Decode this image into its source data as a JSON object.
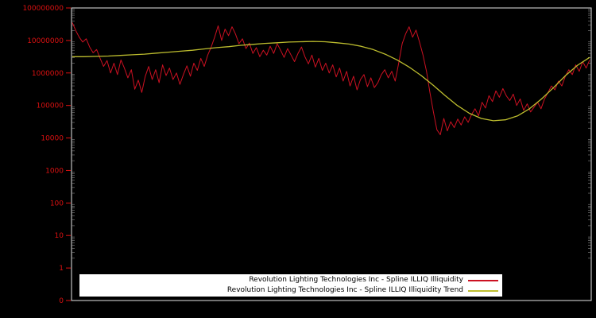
{
  "colors": {
    "background": "#000000",
    "axis_label": "#dd1111",
    "border": "#e6e6e6",
    "minor_tick": "#8a8a8a",
    "legend_bg": "#ffffff",
    "series_red": "#cc1122",
    "series_trend": "#bdbd2e"
  },
  "chart_data": {
    "type": "line",
    "title": "",
    "xlabel": "",
    "ylabel": "",
    "y_scale": "log10",
    "ylim_log10": [
      0,
      8
    ],
    "grid": false,
    "legend_position": "bottom-center",
    "y_tick_labels": [
      "100000000",
      "10000000",
      "1000000",
      "100000",
      "10000",
      "1000",
      "100",
      "10",
      "1",
      "0"
    ],
    "series": [
      {
        "name": "Revolution Lighting Technologies Inc - Spline ILLIQ Illiquidity",
        "color": "#cc1122",
        "log10_values": [
          7.55,
          7.3,
          7.1,
          6.95,
          7.05,
          6.8,
          6.62,
          6.72,
          6.45,
          6.2,
          6.38,
          6.0,
          6.3,
          5.95,
          6.4,
          6.15,
          5.85,
          6.1,
          5.5,
          5.78,
          5.4,
          5.9,
          6.2,
          5.8,
          6.1,
          5.7,
          6.25,
          5.92,
          6.15,
          5.8,
          6.0,
          5.65,
          5.95,
          6.22,
          5.9,
          6.3,
          6.08,
          6.45,
          6.2,
          6.55,
          6.8,
          7.1,
          7.45,
          7.0,
          7.35,
          7.15,
          7.42,
          7.2,
          6.9,
          7.05,
          6.75,
          6.92,
          6.6,
          6.78,
          6.5,
          6.7,
          6.55,
          6.82,
          6.6,
          6.9,
          6.7,
          6.48,
          6.75,
          6.55,
          6.35,
          6.6,
          6.8,
          6.5,
          6.28,
          6.55,
          6.18,
          6.45,
          6.08,
          6.3,
          6.0,
          6.25,
          5.88,
          6.15,
          5.75,
          6.05,
          5.6,
          5.9,
          5.48,
          5.8,
          5.95,
          5.58,
          5.85,
          5.55,
          5.7,
          5.95,
          6.1,
          5.85,
          6.05,
          5.75,
          6.3,
          6.9,
          7.2,
          7.42,
          7.1,
          7.32,
          6.95,
          6.55,
          6.05,
          5.4,
          4.8,
          4.25,
          4.1,
          4.6,
          4.22,
          4.5,
          4.32,
          4.58,
          4.4,
          4.65,
          4.48,
          4.72,
          4.9,
          4.68,
          5.1,
          4.92,
          5.3,
          5.12,
          5.45,
          5.25,
          5.52,
          5.3,
          5.15,
          5.35,
          5.0,
          5.2,
          4.85,
          5.05,
          4.8,
          4.95,
          5.1,
          4.9,
          5.2,
          5.4,
          5.6,
          5.48,
          5.75,
          5.6,
          5.9,
          6.1,
          5.95,
          6.25,
          6.05,
          6.35,
          6.15,
          6.4
        ]
      },
      {
        "name": "Revolution Lighting Technologies Inc - Spline ILLIQ Illiquidity Trend",
        "color": "#bdbd2e",
        "log10_values": [
          6.5,
          6.5,
          6.51,
          6.52,
          6.54,
          6.56,
          6.58,
          6.61,
          6.64,
          6.67,
          6.7,
          6.74,
          6.78,
          6.81,
          6.85,
          6.88,
          6.91,
          6.93,
          6.95,
          6.96,
          6.97,
          6.96,
          6.93,
          6.89,
          6.82,
          6.72,
          6.58,
          6.4,
          6.18,
          5.92,
          5.62,
          5.3,
          5.0,
          4.76,
          4.6,
          4.53,
          4.56,
          4.68,
          4.9,
          5.2,
          5.55,
          5.92,
          6.24,
          6.48
        ]
      }
    ]
  }
}
